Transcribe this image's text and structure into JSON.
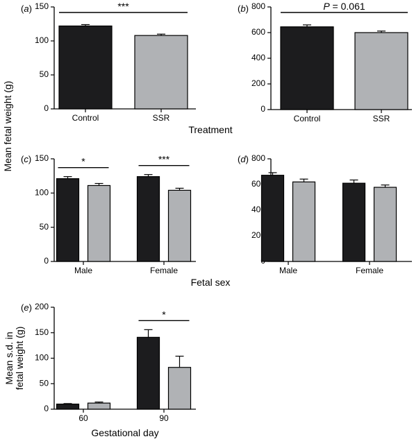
{
  "colors": {
    "control": "#1c1c1e",
    "ssr": "#b0b2b5"
  },
  "shared_labels": {
    "ylabel_ab_cd": "Mean fetal weight (g)",
    "xlabel_ab": "Treatment",
    "xlabel_cd": "Fetal sex"
  },
  "chart_data": [
    {
      "id": "a",
      "panel_label": "(a)",
      "type": "bar",
      "categories": [
        "Control",
        "SSR"
      ],
      "series": [
        {
          "values": [
            122,
            108
          ],
          "errors": [
            2,
            2
          ]
        }
      ],
      "ylim": [
        0,
        150
      ],
      "yticks": [
        0,
        50,
        100,
        150
      ],
      "annotations": [
        {
          "text": "***",
          "from": 0,
          "to": 1
        }
      ]
    },
    {
      "id": "b",
      "panel_label": "(b)",
      "type": "bar",
      "categories": [
        "Control",
        "SSR"
      ],
      "series": [
        {
          "values": [
            645,
            600
          ],
          "errors": [
            15,
            12
          ]
        }
      ],
      "ylim": [
        0,
        800
      ],
      "yticks": [
        0,
        200,
        400,
        600,
        800
      ],
      "annotations": [
        {
          "text": "P = 0.061",
          "from": 0,
          "to": 1
        }
      ]
    },
    {
      "id": "c",
      "panel_label": "(c)",
      "type": "bar",
      "categories": [
        "Male",
        "Female"
      ],
      "series": [
        {
          "values": [
            121,
            124
          ],
          "errors": [
            3,
            3
          ]
        },
        {
          "values": [
            111,
            104
          ],
          "errors": [
            3,
            3
          ]
        }
      ],
      "ylim": [
        0,
        150
      ],
      "yticks": [
        0,
        50,
        100,
        150
      ],
      "annotations": [
        {
          "text": "*",
          "category": 0
        },
        {
          "text": "***",
          "category": 1
        }
      ]
    },
    {
      "id": "d",
      "panel_label": "(d)",
      "type": "bar",
      "categories": [
        "Male",
        "Female"
      ],
      "series": [
        {
          "values": [
            672,
            610
          ],
          "errors": [
            20,
            25
          ]
        },
        {
          "values": [
            620,
            578
          ],
          "errors": [
            22,
            18
          ]
        }
      ],
      "ylim": [
        0,
        800
      ],
      "yticks": [
        0,
        200,
        400,
        600,
        800
      ],
      "annotations": []
    },
    {
      "id": "e",
      "panel_label": "(e)",
      "type": "bar",
      "categories": [
        "60",
        "90"
      ],
      "series": [
        {
          "values": [
            10,
            141
          ],
          "errors": [
            1,
            15
          ]
        },
        {
          "values": [
            12,
            82
          ],
          "errors": [
            2,
            22
          ]
        }
      ],
      "ylim": [
        0,
        200
      ],
      "yticks": [
        0,
        50,
        100,
        150,
        200
      ],
      "ylabel": [
        "Mean s.d. in",
        "fetal weight (g)"
      ],
      "xlabel": "Gestational day",
      "annotations": [
        {
          "text": "*",
          "category": 1
        }
      ]
    }
  ]
}
